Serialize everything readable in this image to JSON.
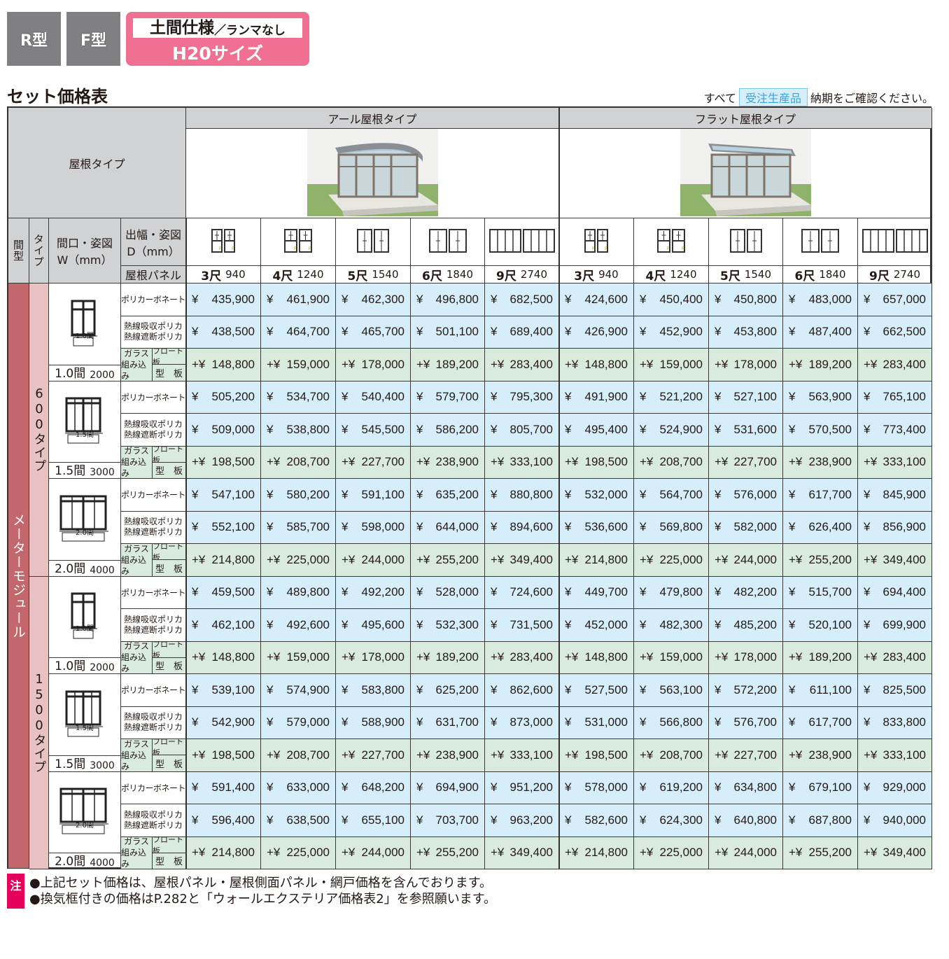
{
  "header": {
    "tabs": [
      "R型",
      "F型"
    ],
    "badge": {
      "line1": "土間仕様",
      "line1_sub": "／ランマなし",
      "line2": "H20サイズ"
    }
  },
  "title": "セット価格表",
  "order_note": {
    "prefix": "すべて",
    "tag": "受注生産品",
    "suffix": "納期をご確認ください。"
  },
  "colors": {
    "module": "#c2676b",
    "type": "#e8c2c2",
    "price_bg": "#d5eefa",
    "glass_bg": "#d9ebdc",
    "header_bg": "#d1d2d4",
    "badge": "#ef7090",
    "note_badge": "#e6005a"
  },
  "table": {
    "roof_type_label": "屋根タイプ",
    "roof_types": [
      "アール屋根タイプ",
      "フラット屋根タイプ"
    ],
    "col_ma": "間型",
    "col_type": "タイプ",
    "col_width": [
      "間口・姿図",
      "W（mm）"
    ],
    "col_depth": [
      "出幅・姿図",
      "D（mm）"
    ],
    "col_panel": "屋根パネル",
    "depths": [
      {
        "shaku": "3尺",
        "mm": "940"
      },
      {
        "shaku": "4尺",
        "mm": "1240"
      },
      {
        "shaku": "5尺",
        "mm": "1540"
      },
      {
        "shaku": "6尺",
        "mm": "1840"
      },
      {
        "shaku": "9尺",
        "mm": "2740"
      },
      {
        "shaku": "3尺",
        "mm": "940"
      },
      {
        "shaku": "4尺",
        "mm": "1240"
      },
      {
        "shaku": "5尺",
        "mm": "1540"
      },
      {
        "shaku": "6尺",
        "mm": "1840"
      },
      {
        "shaku": "9尺",
        "mm": "2740"
      }
    ],
    "module_label": "メーターモジュール",
    "panels": {
      "poly": "ポリカーボネート",
      "heat": [
        "熱線吸収ポリカ",
        "熱線遮断ポリカ"
      ],
      "glass": [
        "ガラス",
        "組み込み"
      ],
      "float": "フロート板",
      "patterned": "型　板"
    },
    "yen": "¥",
    "plus_yen": "+¥",
    "types": [
      {
        "label": "600タイプ",
        "widths": [
          {
            "ken": "1.0間",
            "mm": "2000",
            "fig": "1.0間",
            "poly": [
              "435,900",
              "461,900",
              "462,300",
              "496,800",
              "682,500",
              "424,600",
              "450,400",
              "450,800",
              "483,000",
              "657,000"
            ],
            "heat": [
              "438,500",
              "464,700",
              "465,700",
              "501,100",
              "689,400",
              "426,900",
              "452,900",
              "453,800",
              "487,400",
              "662,500"
            ],
            "glass": [
              "148,800",
              "159,000",
              "178,000",
              "189,200",
              "283,400",
              "148,800",
              "159,000",
              "178,000",
              "189,200",
              "283,400"
            ]
          },
          {
            "ken": "1.5間",
            "mm": "3000",
            "fig": "1.5間",
            "poly": [
              "505,200",
              "534,700",
              "540,400",
              "579,700",
              "795,300",
              "491,900",
              "521,200",
              "527,100",
              "563,900",
              "765,100"
            ],
            "heat": [
              "509,000",
              "538,800",
              "545,500",
              "586,200",
              "805,700",
              "495,400",
              "524,900",
              "531,600",
              "570,500",
              "773,400"
            ],
            "glass": [
              "198,500",
              "208,700",
              "227,700",
              "238,900",
              "333,100",
              "198,500",
              "208,700",
              "227,700",
              "238,900",
              "333,100"
            ]
          },
          {
            "ken": "2.0間",
            "mm": "4000",
            "fig": "2.0間",
            "poly": [
              "547,100",
              "580,200",
              "591,100",
              "635,200",
              "880,800",
              "532,000",
              "564,700",
              "576,000",
              "617,700",
              "845,900"
            ],
            "heat": [
              "552,100",
              "585,700",
              "598,000",
              "644,000",
              "894,600",
              "536,600",
              "569,800",
              "582,000",
              "626,400",
              "856,900"
            ],
            "glass": [
              "214,800",
              "225,000",
              "244,000",
              "255,200",
              "349,400",
              "214,800",
              "225,000",
              "244,000",
              "255,200",
              "349,400"
            ]
          }
        ]
      },
      {
        "label": "1500タイプ",
        "widths": [
          {
            "ken": "1.0間",
            "mm": "2000",
            "fig": "1.0間",
            "poly": [
              "459,500",
              "489,800",
              "492,200",
              "528,000",
              "724,600",
              "449,700",
              "479,800",
              "482,200",
              "515,700",
              "694,400"
            ],
            "heat": [
              "462,100",
              "492,600",
              "495,600",
              "532,300",
              "731,500",
              "452,000",
              "482,300",
              "485,200",
              "520,100",
              "699,900"
            ],
            "glass": [
              "148,800",
              "159,000",
              "178,000",
              "189,200",
              "283,400",
              "148,800",
              "159,000",
              "178,000",
              "189,200",
              "283,400"
            ]
          },
          {
            "ken": "1.5間",
            "mm": "3000",
            "fig": "1.5間",
            "poly": [
              "539,100",
              "574,900",
              "583,800",
              "625,200",
              "862,600",
              "527,500",
              "563,100",
              "572,200",
              "611,100",
              "825,500"
            ],
            "heat": [
              "542,900",
              "579,000",
              "588,900",
              "631,700",
              "873,000",
              "531,000",
              "566,800",
              "576,700",
              "617,700",
              "833,800"
            ],
            "glass": [
              "198,500",
              "208,700",
              "227,700",
              "238,900",
              "333,100",
              "198,500",
              "208,700",
              "227,700",
              "238,900",
              "333,100"
            ]
          },
          {
            "ken": "2.0間",
            "mm": "4000",
            "fig": "2.0間",
            "poly": [
              "591,400",
              "633,000",
              "648,200",
              "694,900",
              "951,200",
              "578,000",
              "619,200",
              "634,800",
              "679,100",
              "929,000"
            ],
            "heat": [
              "596,400",
              "638,500",
              "655,100",
              "703,700",
              "963,200",
              "582,600",
              "624,300",
              "640,800",
              "687,800",
              "940,000"
            ],
            "glass": [
              "214,800",
              "225,000",
              "244,000",
              "255,200",
              "349,400",
              "214,800",
              "225,000",
              "244,000",
              "255,200",
              "349,400"
            ]
          }
        ]
      }
    ]
  },
  "footer": {
    "badge": "注",
    "lines": [
      "●上記セット価格は、屋根パネル・屋根側面パネル・網戸価格を含んでおります。",
      "●換気框付きの価格はP.282と「ウォールエクステリア価格表2」を参照願います。"
    ]
  }
}
